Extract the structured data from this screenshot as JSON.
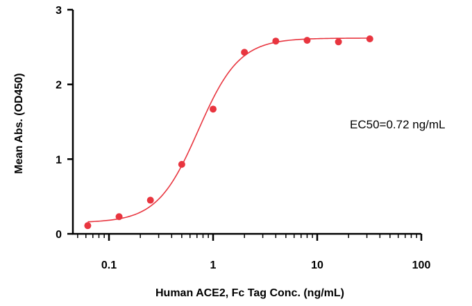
{
  "chart_data": {
    "type": "scatter",
    "xlabel": "Human ACE2, Fc Tag Conc. (ng/mL)",
    "ylabel": "Mean Abs. (OD450)",
    "annotation": "EC50=0.72 ng/mL",
    "x_scale": "log",
    "xlim": [
      0.045,
      100
    ],
    "ylim": [
      0,
      3
    ],
    "x_ticks": [
      {
        "value": 0.1,
        "label": "0.1"
      },
      {
        "value": 1,
        "label": "1"
      },
      {
        "value": 10,
        "label": "10"
      },
      {
        "value": 100,
        "label": "100"
      }
    ],
    "y_ticks": [
      {
        "value": 0,
        "label": "0"
      },
      {
        "value": 1,
        "label": "1"
      },
      {
        "value": 2,
        "label": "2"
      },
      {
        "value": 3,
        "label": "3"
      }
    ],
    "grid": false,
    "series": [
      {
        "color": "#e8353f",
        "x": [
          0.0625,
          0.125,
          0.25,
          0.5,
          1,
          2,
          4,
          8,
          16,
          32
        ],
        "y": [
          0.11,
          0.23,
          0.45,
          0.93,
          1.67,
          2.43,
          2.58,
          2.59,
          2.57,
          2.61
        ],
        "fit": {
          "model": "4PL",
          "bottom": 0.15,
          "top": 2.62,
          "ec50": 0.72,
          "hill": 2.2
        }
      }
    ]
  }
}
